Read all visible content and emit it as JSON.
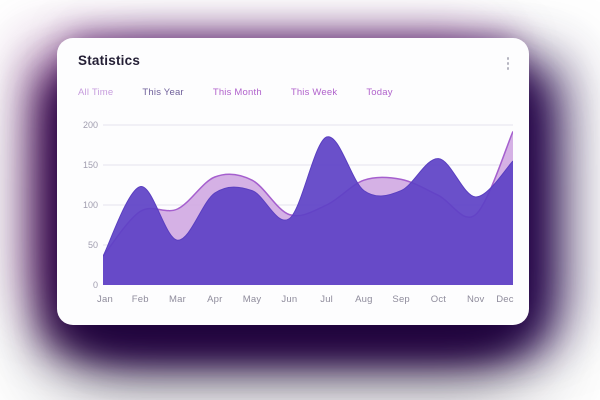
{
  "card": {
    "title": "Statistics",
    "menu_icon": "kebab-vertical-icon",
    "tabs": [
      {
        "label": "All Time",
        "color": "#c79ddd",
        "active": false
      },
      {
        "label": "This Year",
        "color": "#70619b",
        "active": true
      },
      {
        "label": "This Month",
        "color": "#b163cc",
        "active": false
      },
      {
        "label": "This Week",
        "color": "#b163cc",
        "active": false
      },
      {
        "label": "Today",
        "color": "#b163cc",
        "active": false
      }
    ]
  },
  "chart_data": {
    "type": "area",
    "smooth": true,
    "grid": true,
    "legend": false,
    "title": "",
    "xlabel": "",
    "ylabel": "",
    "ylim": [
      0,
      200
    ],
    "yticks": [
      0,
      50,
      100,
      150,
      200
    ],
    "categories": [
      "Jan",
      "Feb",
      "Mar",
      "Apr",
      "May",
      "Jun",
      "Jul",
      "Aug",
      "Sep",
      "Oct",
      "Nov",
      "Dec"
    ],
    "series": [
      {
        "name": "lavender-series",
        "fill": "#d3ade4",
        "stroke": "#a55fce",
        "fill_opacity": 0.95,
        "values": [
          36,
          92,
          95,
          135,
          131,
          88,
          100,
          131,
          132,
          112,
          88,
          192
        ]
      },
      {
        "name": "purple-series",
        "fill": "#5d41c5",
        "stroke": "#5a3fc0",
        "fill_opacity": 0.92,
        "values": [
          36,
          123,
          56,
          115,
          118,
          83,
          185,
          118,
          118,
          158,
          110,
          155
        ]
      }
    ],
    "colors": {
      "plot_background": "#f5f4f8",
      "gridline": "#e5e3ed",
      "card_background": "#fdfdfe"
    }
  }
}
